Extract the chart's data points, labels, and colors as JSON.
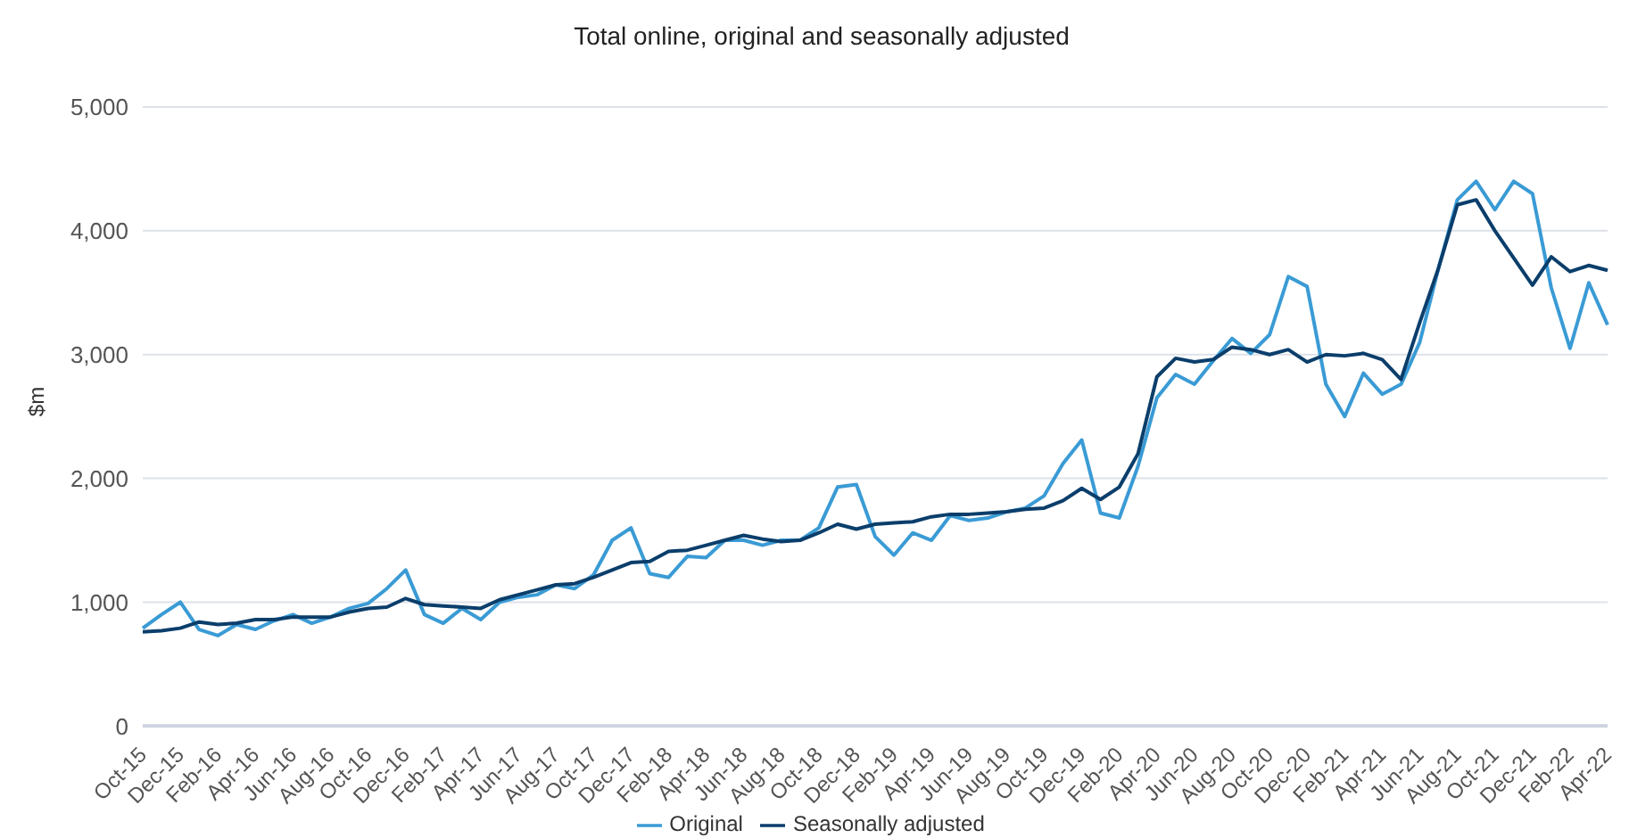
{
  "chart_data": {
    "type": "line",
    "title": "Total online, original and seasonally adjusted",
    "ylabel": "$m",
    "categories": [
      "Oct-15",
      null,
      "Dec-15",
      null,
      "Feb-16",
      null,
      "Apr-16",
      null,
      "Jun-16",
      null,
      "Aug-16",
      null,
      "Oct-16",
      null,
      "Dec-16",
      null,
      "Feb-17",
      null,
      "Apr-17",
      null,
      "Jun-17",
      null,
      "Aug-17",
      null,
      "Oct-17",
      null,
      "Dec-17",
      null,
      "Feb-18",
      null,
      "Apr-18",
      null,
      "Jun-18",
      null,
      "Aug-18",
      null,
      "Oct-18",
      null,
      "Dec-18",
      null,
      "Feb-19",
      null,
      "Apr-19",
      null,
      "Jun-19",
      null,
      "Aug-19",
      null,
      "Oct-19",
      null,
      "Dec-19",
      null,
      "Feb-20",
      null,
      "Apr-20",
      null,
      "Jun-20",
      null,
      "Aug-20",
      null,
      "Oct-20",
      null,
      "Dec-20",
      null,
      "Feb-21",
      null,
      "Apr-21",
      null,
      "Jun-21",
      null,
      "Aug-21",
      null,
      "Oct-21",
      null,
      "Dec-21",
      null,
      "Feb-22",
      null,
      "Apr-22"
    ],
    "series": [
      {
        "name": "Original",
        "color": "#3a9bd5",
        "values": [
          790,
          900,
          1000,
          780,
          730,
          820,
          780,
          850,
          900,
          830,
          880,
          950,
          990,
          1110,
          1260,
          900,
          830,
          950,
          860,
          1000,
          1040,
          1060,
          1140,
          1110,
          1220,
          1500,
          1600,
          1230,
          1200,
          1370,
          1360,
          1500,
          1500,
          1460,
          1500,
          1500,
          1600,
          1930,
          1950,
          1530,
          1380,
          1560,
          1500,
          1700,
          1660,
          1680,
          1730,
          1760,
          1860,
          2120,
          2310,
          1720,
          1680,
          2100,
          2650,
          2840,
          2760,
          2950,
          3130,
          3010,
          3160,
          3630,
          3550,
          2760,
          2500,
          2850,
          2680,
          2760,
          3100,
          3700,
          4250,
          4400,
          4170,
          4400,
          4300,
          3540,
          3050,
          3580,
          3240
        ]
      },
      {
        "name": "Seasonally adjusted",
        "color": "#0b3e6b",
        "values": [
          760,
          770,
          790,
          840,
          820,
          830,
          860,
          860,
          880,
          880,
          880,
          920,
          950,
          960,
          1030,
          980,
          970,
          960,
          950,
          1020,
          1060,
          1100,
          1140,
          1150,
          1200,
          1260,
          1320,
          1330,
          1410,
          1420,
          1460,
          1500,
          1540,
          1510,
          1490,
          1500,
          1560,
          1630,
          1590,
          1630,
          1640,
          1650,
          1690,
          1710,
          1710,
          1720,
          1730,
          1750,
          1760,
          1820,
          1920,
          1830,
          1930,
          2200,
          2820,
          2970,
          2940,
          2960,
          3060,
          3040,
          3000,
          3040,
          2940,
          3000,
          2990,
          3010,
          2960,
          2800,
          3260,
          3700,
          4210,
          4250,
          4000,
          3780,
          3560,
          3790,
          3670,
          3720,
          3680
        ]
      }
    ],
    "ylim": [
      0,
      5000
    ],
    "yticks": [
      0,
      {
        "value": 1000,
        "label": "1,000"
      },
      {
        "value": 2000,
        "label": "2,000"
      },
      {
        "value": 3000,
        "label": "3,000"
      },
      {
        "value": 4000,
        "label": "4,000"
      },
      {
        "value": 5000,
        "label": "5,000"
      }
    ],
    "grid": "y",
    "legend": "bottom",
    "marker": "none",
    "line_style": "solid"
  }
}
